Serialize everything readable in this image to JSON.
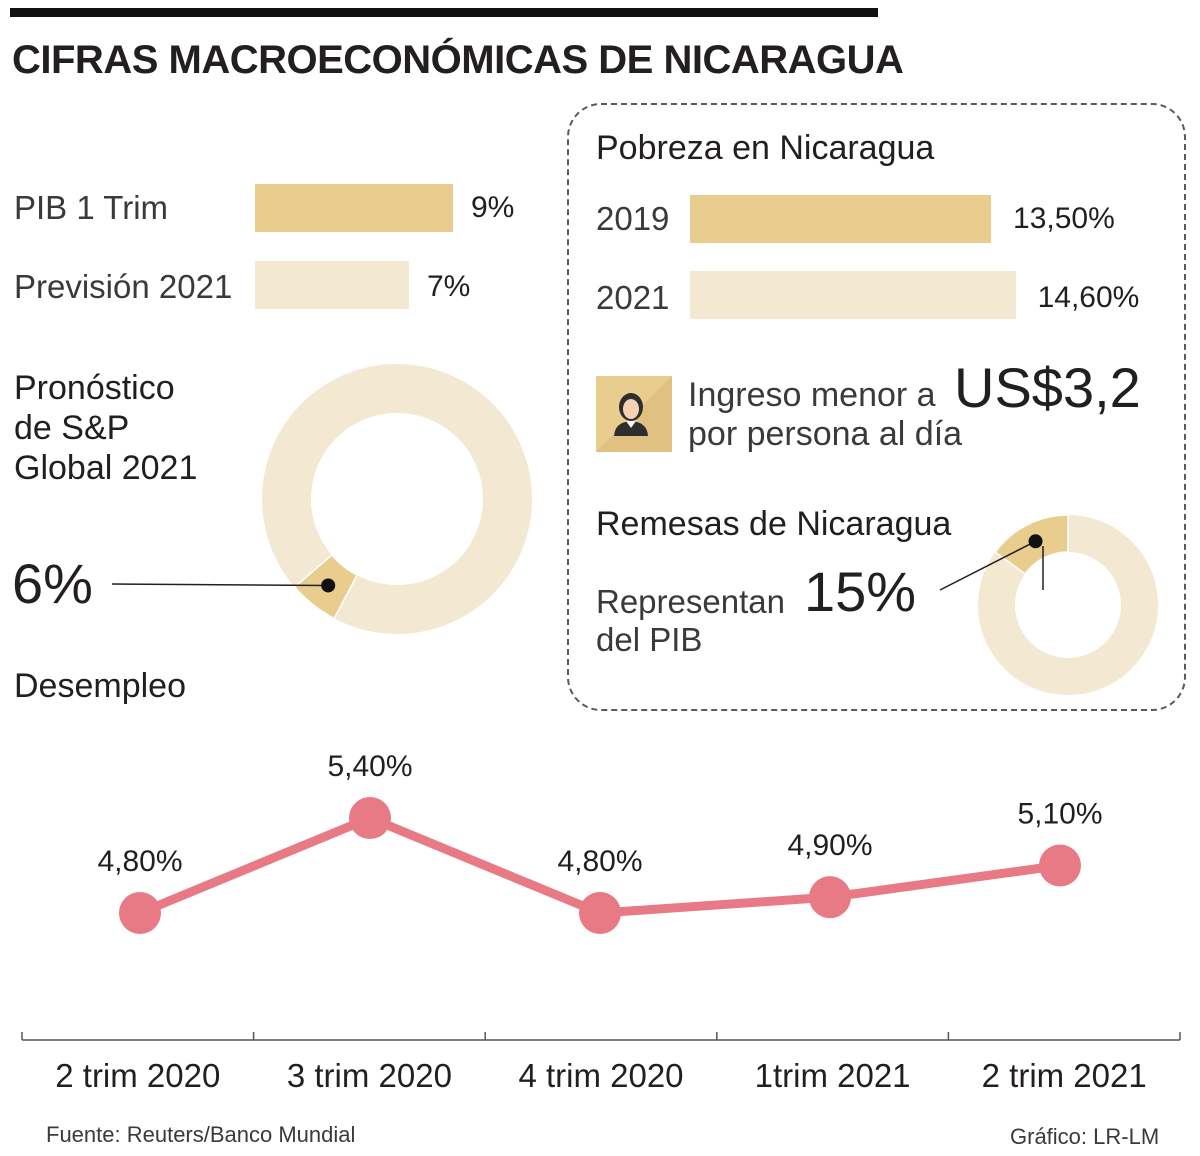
{
  "title": "CIFRAS MACROECONÓMICAS DE NICARAGUA",
  "pib": {
    "rows": [
      {
        "label": "PIB 1 Trim",
        "value_label": "9%",
        "value": 9
      },
      {
        "label": "Previsión 2021",
        "value_label": "7%",
        "value": 7
      }
    ]
  },
  "forecast": {
    "title_line1": "Pronóstico",
    "title_line2": "de S&P",
    "title_line3": "Global 2021",
    "value_label": "6%",
    "value": 6
  },
  "poverty": {
    "title": "Pobreza en Nicaragua",
    "rows": [
      {
        "label": "2019",
        "value_label": "13,50%",
        "value": 13.5
      },
      {
        "label": "2021",
        "value_label": "14,60%",
        "value": 14.6
      }
    ],
    "income_line1": "Ingreso menor a",
    "income_line2": "por persona al día",
    "income_amount": "US$3,2",
    "avatar_icon": "woman-avatar-icon"
  },
  "remittances": {
    "title": "Remesas de Nicaragua",
    "line1": "Representan",
    "line2": "del PIB",
    "value_label": "15%",
    "value": 15
  },
  "unemployment": {
    "title": "Desempleo"
  },
  "chart_data": {
    "type": "line",
    "title": "Desempleo",
    "categories": [
      "2 trim 2020",
      "3 trim 2020",
      "4 trim 2020",
      "1trim 2021",
      "2 trim 2021"
    ],
    "series": [
      {
        "name": "Desempleo",
        "values": [
          4.8,
          5.4,
          4.8,
          4.9,
          5.1
        ],
        "labels": [
          "4,80%",
          "5,40%",
          "4,80%",
          "4,90%",
          "5,10%"
        ]
      }
    ],
    "ylim": [
      4.8,
      5.4
    ],
    "xlabel": "",
    "ylabel": ""
  },
  "colors": {
    "dark_gold": "#e9cd8f",
    "light_cream": "#f3e8d2",
    "line_pink": "#e87a86",
    "text": "#231f20"
  },
  "footer": {
    "source": "Fuente: Reuters/Banco Mundial",
    "credit": "Gráfico: LR-LM"
  }
}
